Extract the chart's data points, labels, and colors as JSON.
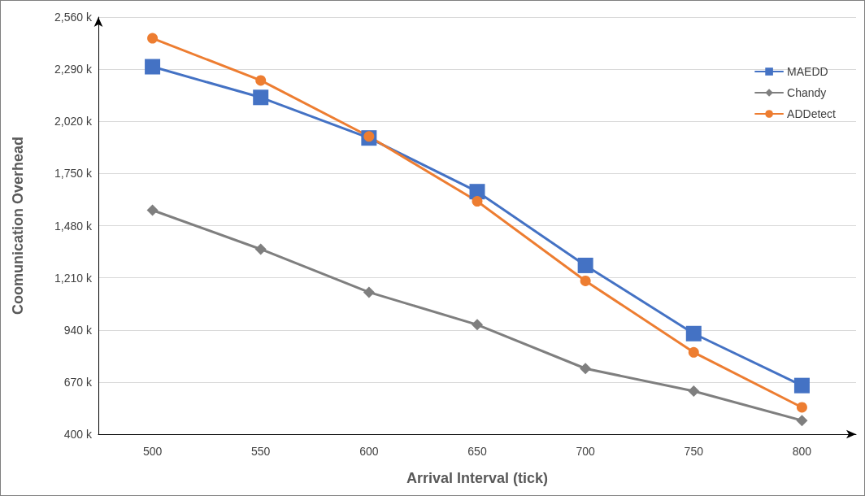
{
  "chart_data": {
    "type": "line",
    "xlabel": "Arrival Interval (tick)",
    "ylabel": "Coomunication Overhead",
    "categories": [
      "500",
      "550",
      "600",
      "650",
      "700",
      "750",
      "800"
    ],
    "series": [
      {
        "name": "MAEDD",
        "color": "#4472c4",
        "marker": "square",
        "values": [
          2303,
          2144,
          1934,
          1656,
          1274,
          921,
          652
        ]
      },
      {
        "name": "Chandy",
        "color": "#7f7f7f",
        "marker": "diamond",
        "values": [
          1560,
          1358,
          1135,
          967,
          740,
          623,
          471
        ]
      },
      {
        "name": "ADDetect",
        "color": "#ed7d31",
        "marker": "circle",
        "values": [
          2450,
          2232,
          1942,
          1606,
          1194,
          824,
          539
        ]
      }
    ],
    "ylim": [
      400,
      2560
    ],
    "yticks": [
      {
        "value": 400,
        "label": "400 k"
      },
      {
        "value": 670,
        "label": "670 k"
      },
      {
        "value": 940,
        "label": "940 k"
      },
      {
        "value": 1210,
        "label": "1,210 k"
      },
      {
        "value": 1480,
        "label": "1,480 k"
      },
      {
        "value": 1750,
        "label": "1,750 k"
      },
      {
        "value": 2020,
        "label": "2,020 k"
      },
      {
        "value": 2290,
        "label": "2,290 k"
      },
      {
        "value": 2560,
        "label": "2,560 k"
      }
    ],
    "grid": "y",
    "legend": "top right",
    "line_style": "solid"
  }
}
